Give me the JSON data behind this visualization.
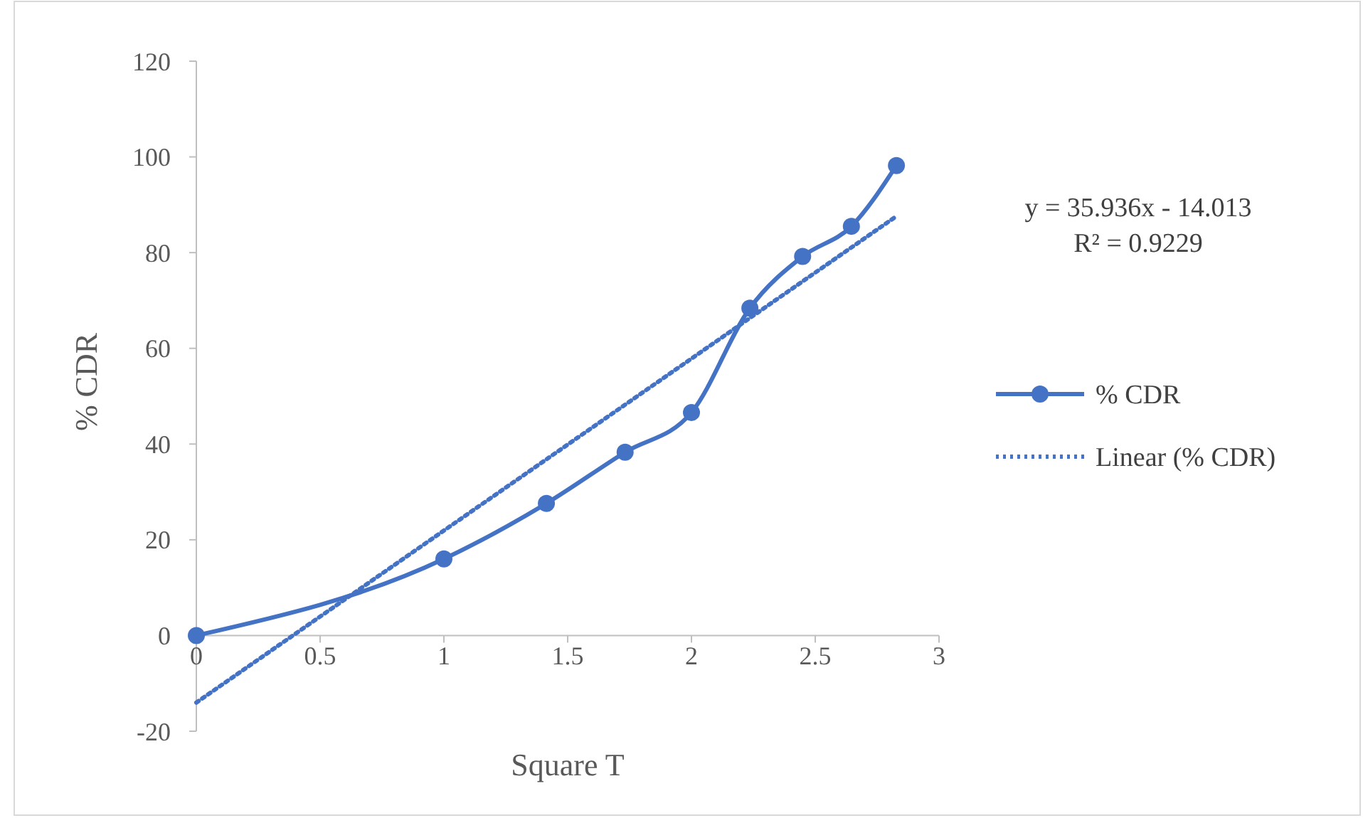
{
  "chart_data": {
    "type": "line",
    "xlabel": "Square T",
    "ylabel": "% CDR",
    "series": [
      {
        "name": "% CDR",
        "color": "#4472c4",
        "x": [
          0,
          1,
          1.414,
          1.732,
          2,
          2.236,
          2.449,
          2.646,
          2.828
        ],
        "values": [
          0,
          16,
          27.6,
          38.3,
          46.6,
          68.4,
          79.2,
          85.5,
          98.2
        ],
        "marker": "circle",
        "line_style": "solid"
      },
      {
        "name": "Linear (% CDR)",
        "color": "#4472c4",
        "x": [
          0,
          2.828
        ],
        "values": [
          -14.013,
          87.61
        ],
        "marker": "none",
        "line_style": "dotted"
      }
    ],
    "xlim": [
      0,
      3
    ],
    "xticks": [
      0,
      0.5,
      1,
      1.5,
      2,
      2.5,
      3
    ],
    "ylim": [
      -20,
      120
    ],
    "yticks": [
      -20,
      0,
      20,
      40,
      60,
      80,
      100,
      120
    ],
    "grid": false,
    "legend": "right",
    "annotations": [
      "y = 35.936x - 14.013",
      "R² = 0.9229"
    ]
  }
}
